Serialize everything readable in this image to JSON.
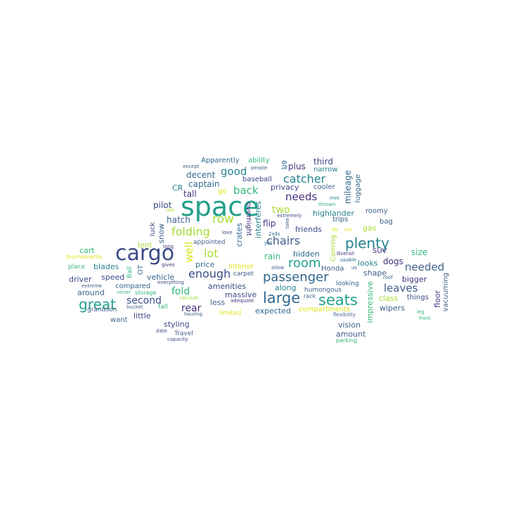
{
  "palette": {
    "teal": "#21a08a",
    "navy": "#3b4b86",
    "blue": "#31688e",
    "indigo": "#46307e",
    "green": "#35b779",
    "lime": "#a8db34",
    "yellow": "#dce319",
    "slate": "#3e5f8a",
    "cyan": "#26828e"
  },
  "words": {
    "space": "space",
    "cargo": "cargo",
    "plenty": "plenty",
    "seats": "seats",
    "large": "large",
    "passenger": "passenger",
    "great": "great",
    "room": "room",
    "chairs": "chairs",
    "row": "row",
    "catcher": "catcher",
    "folding": "folding",
    "lot": "lot",
    "enough": "enough",
    "needed": "needed",
    "leaves": "leaves",
    "back": "back",
    "good": "good",
    "needs": "needs",
    "two": "two",
    "second": "second",
    "fold": "fold",
    "rear": "rear",
    "well": "well",
    "third": "third",
    "Apparently": "Apparently",
    "ability": "ability",
    "plus": "plus",
    "narrow": "narrow",
    "6ft": "6ft",
    "decent": "decent",
    "captain": "captain",
    "baseball": "baseball",
    "privacy": "privacy",
    "cooler": "cooler",
    "mileage": "mileage",
    "luggage": "luggage",
    "CR": "CR",
    "tall": "tall",
    "go": "go",
    "pilot": "pilot",
    "hatch": "hatch",
    "snow": "snow",
    "luck": "luck",
    "crates": "crates",
    "interferes": "interferes",
    "overnight": "overnight",
    "flip": "flip",
    "highlander": "highlander",
    "trips": "trips",
    "roomy": "roomy",
    "bag": "bag",
    "gas": "gas",
    "friends": "friends",
    "Coming": "Coming",
    "tent": "tent",
    "tournaments": "tournaments",
    "cart": "cart",
    "place": "place",
    "blades": "blades",
    "OT": "OT",
    "Ball": "Ball",
    "appointed": "appointed",
    "price": "price",
    "interior": "interior",
    "rain": "rain",
    "hidden": "hidden",
    "Honda": "Honda",
    "looks": "looks",
    "dogs": "dogs",
    "shape": "shape",
    "SUV": "SUV",
    "size": "size",
    "bigger": "bigger",
    "floor": "floor",
    "vacuuming": "vacuuming",
    "driver": "driver",
    "speed": "speed",
    "vehicle": "vehicle",
    "compared": "compared",
    "around": "around",
    "amenities": "amenities",
    "massive": "massive",
    "along": "along",
    "humongous": "humongous",
    "looking": "looking",
    "impressive": "impressive",
    "class": "class",
    "things": "things",
    "less": "less",
    "expected": "expected",
    "compartments": "compartments",
    "wipers": "wipers",
    "grandson": "grandson",
    "bucket": "bucket",
    "storage": "storage",
    "fall": "fall",
    "want": "want",
    "little": "little",
    "limited": "limited",
    "flexibility": "flexibility",
    "vision": "vision",
    "amount": "amount",
    "parking": "parking",
    "styling": "styling",
    "Travel": "Travel",
    "capacity": "capacity",
    "date": "date",
    "hauling": "hauling",
    "leg": "leg",
    "front": "front",
    "except": "except",
    "people": "people",
    "met": "met",
    "thrown": "thrown",
    "take": "take",
    "extremely": "extremely",
    "love": "love",
    "2x4s": "2x4s",
    "yet": "yet",
    "use": "use",
    "split": "split",
    "long": "long",
    "Overall": "Overall",
    "usable": "usable",
    "us": "us",
    "roof": "roof",
    "gives": "gives",
    "allow": "allow",
    "carpet": "carpet",
    "rack": "rack",
    "adequate": "adequate",
    "everything": "everything",
    "extreme": "extreme",
    "never": "never",
    "vacuum": "vacuum",
    "car": "car",
    "do": "do"
  }
}
